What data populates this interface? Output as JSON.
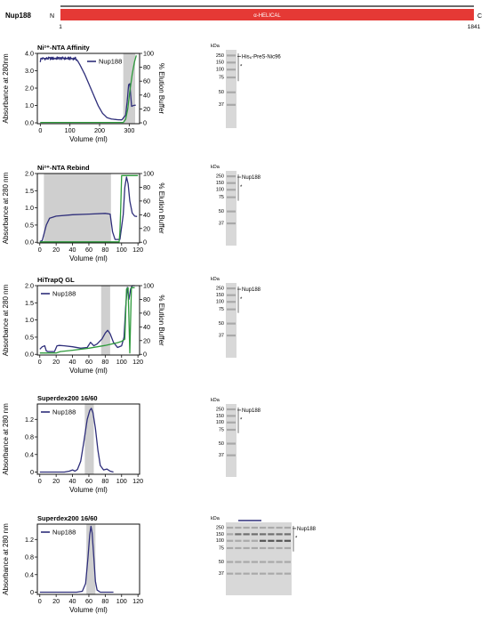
{
  "header": {
    "protein": "Nup188",
    "n_label": "N",
    "c_label": "C",
    "start": "1",
    "end": "1841",
    "domain_label": "α-HELICAL",
    "colors": {
      "domain": "#e53935",
      "line": "#111111"
    }
  },
  "chart_data": [
    {
      "type": "line",
      "title": "Ni²⁺-NTA Affinity",
      "xlabel": "Volume (ml)",
      "ylabel": "Absorbance at 280nm",
      "ylabel2": "% Elution Buffer",
      "xlim": [
        -10,
        335
      ],
      "xticks": [
        0,
        100,
        200,
        300
      ],
      "ylim": [
        -0.05,
        4.0
      ],
      "yticks": [
        0.0,
        1.0,
        2.0,
        3.0,
        4.0
      ],
      "ytick_labels": [
        "0.0",
        "1.0",
        "2.0",
        "3.0",
        "4.0"
      ],
      "y2lim": [
        -1.25,
        100
      ],
      "y2ticks": [
        0,
        20,
        40,
        60,
        80,
        100
      ],
      "shade": [
        [
          280,
          320
        ]
      ],
      "legend": [
        {
          "label": "Nup188",
          "color": "#2e2e7a"
        }
      ],
      "series": [
        {
          "name": "Nup188",
          "color": "#2e2e7a",
          "axis": "left",
          "noise": 0.08,
          "noise_range": [
            5,
            125
          ],
          "points": [
            [
              0,
              3.5
            ],
            [
              2,
              3.72
            ],
            [
              10,
              3.7
            ],
            [
              60,
              3.72
            ],
            [
              120,
              3.7
            ],
            [
              125,
              3.6
            ],
            [
              135,
              3.3
            ],
            [
              150,
              2.8
            ],
            [
              165,
              2.2
            ],
            [
              180,
              1.6
            ],
            [
              195,
              1.0
            ],
            [
              210,
              0.55
            ],
            [
              225,
              0.3
            ],
            [
              240,
              0.22
            ],
            [
              260,
              0.18
            ],
            [
              275,
              0.17
            ],
            [
              288,
              0.45
            ],
            [
              293,
              1.2
            ],
            [
              298,
              2.2
            ],
            [
              302,
              2.25
            ],
            [
              305,
              1.6
            ],
            [
              308,
              0.95
            ],
            [
              315,
              1.0
            ],
            [
              322,
              1.02
            ]
          ]
        },
        {
          "axis": "right",
          "color": "#2e9a3c",
          "points": [
            [
              0,
              0.5
            ],
            [
              280,
              0.5
            ],
            [
              288,
              5
            ],
            [
              295,
              20
            ],
            [
              302,
              45
            ],
            [
              310,
              70
            ],
            [
              318,
              88
            ],
            [
              324,
              97
            ]
          ]
        }
      ]
    },
    {
      "type": "line",
      "title": "Ni²⁺-NTA Rebind",
      "xlabel": "Volume (ml)",
      "ylabel": "Absorbance at 280 nm",
      "ylabel2": "% Elution Buffer",
      "xlim": [
        -3,
        122
      ],
      "xticks": [
        0,
        20,
        40,
        60,
        80,
        100,
        120
      ],
      "ylim": [
        -0.02,
        2.0
      ],
      "yticks": [
        0.0,
        0.5,
        1.0,
        1.5,
        2.0
      ],
      "ytick_labels": [
        "0.0",
        "0.5",
        "1.0",
        "1.5",
        "2.0"
      ],
      "y2lim": [
        -1,
        100
      ],
      "y2ticks": [
        0,
        20,
        40,
        60,
        80,
        100
      ],
      "shade": [
        [
          5,
          87
        ]
      ],
      "legend": [],
      "series": [
        {
          "name": "Nup188",
          "color": "#2e2e7a",
          "axis": "left",
          "points": [
            [
              0,
              0.02
            ],
            [
              3,
              0.05
            ],
            [
              8,
              0.5
            ],
            [
              12,
              0.7
            ],
            [
              20,
              0.76
            ],
            [
              40,
              0.8
            ],
            [
              60,
              0.82
            ],
            [
              80,
              0.84
            ],
            [
              86,
              0.82
            ],
            [
              89,
              0.3
            ],
            [
              92,
              0.08
            ],
            [
              98,
              0.08
            ],
            [
              102,
              0.8
            ],
            [
              104,
              1.6
            ],
            [
              106,
              1.9
            ],
            [
              108,
              1.7
            ],
            [
              110,
              1.2
            ],
            [
              113,
              0.85
            ],
            [
              116,
              0.76
            ],
            [
              119,
              0.75
            ]
          ]
        },
        {
          "axis": "right",
          "color": "#2e9a3c",
          "points": [
            [
              0,
              0.5
            ],
            [
              97,
              0.5
            ],
            [
              98,
              15
            ],
            [
              99,
              50
            ],
            [
              100,
              97
            ],
            [
              120,
              97
            ]
          ]
        }
      ]
    },
    {
      "type": "line",
      "title": "HiTrapQ GL",
      "xlabel": "Volume (ml)",
      "ylabel": "Absorbance at 280 nm",
      "ylabel2": "% Elution Buffer",
      "xlim": [
        -3,
        122
      ],
      "xticks": [
        0,
        20,
        40,
        60,
        80,
        100,
        120
      ],
      "ylim": [
        -0.02,
        2.0
      ],
      "yticks": [
        0.0,
        0.5,
        1.0,
        1.5,
        2.0
      ],
      "ytick_labels": [
        "0.0",
        "0.5",
        "1.0",
        "1.5",
        "2.0"
      ],
      "y2lim": [
        -1,
        100
      ],
      "y2ticks": [
        0,
        20,
        40,
        60,
        80,
        100
      ],
      "shade": [
        [
          75,
          86
        ]
      ],
      "legend": [
        {
          "label": "Nup188",
          "color": "#2e2e7a"
        }
      ],
      "series": [
        {
          "name": "Nup188",
          "color": "#2e2e7a",
          "axis": "left",
          "points": [
            [
              0,
              0.15
            ],
            [
              3,
              0.22
            ],
            [
              6,
              0.25
            ],
            [
              8,
              0.1
            ],
            [
              10,
              0.08
            ],
            [
              18,
              0.08
            ],
            [
              21,
              0.25
            ],
            [
              24,
              0.26
            ],
            [
              30,
              0.25
            ],
            [
              40,
              0.22
            ],
            [
              50,
              0.18
            ],
            [
              58,
              0.2
            ],
            [
              62,
              0.35
            ],
            [
              66,
              0.25
            ],
            [
              70,
              0.3
            ],
            [
              76,
              0.45
            ],
            [
              80,
              0.62
            ],
            [
              83,
              0.7
            ],
            [
              86,
              0.6
            ],
            [
              90,
              0.35
            ],
            [
              95,
              0.2
            ],
            [
              100,
              0.25
            ],
            [
              103,
              0.5
            ],
            [
              105,
              1.4
            ],
            [
              107,
              1.95
            ],
            [
              109,
              1.6
            ],
            [
              111,
              1.9
            ],
            [
              113,
              2.0
            ],
            [
              116,
              2.0
            ]
          ]
        },
        {
          "axis": "right",
          "color": "#2e9a3c",
          "points": [
            [
              0,
              2
            ],
            [
              20,
              2
            ],
            [
              25,
              4
            ],
            [
              40,
              6
            ],
            [
              60,
              9
            ],
            [
              80,
              13
            ],
            [
              95,
              17
            ],
            [
              100,
              19
            ],
            [
              104,
              22
            ],
            [
              106,
              95
            ],
            [
              108,
              97
            ],
            [
              110,
              2
            ],
            [
              112,
              97
            ],
            [
              116,
              97
            ]
          ]
        }
      ]
    },
    {
      "type": "line",
      "title": "Superdex200 16/60",
      "xlabel": "Volume (ml)",
      "ylabel": "Absorbance at 280 nm",
      "xlim": [
        -3,
        122
      ],
      "xticks": [
        0,
        20,
        40,
        60,
        80,
        100,
        120
      ],
      "ylim": [
        -0.05,
        1.55
      ],
      "yticks": [
        0.0,
        0.4,
        0.8,
        1.2
      ],
      "ytick_labels": [
        "0",
        "0.4",
        "0.8",
        "1.2"
      ],
      "shade": [
        [
          55,
          66
        ]
      ],
      "legend": [
        {
          "label": "Nup188",
          "color": "#2e2e7a"
        }
      ],
      "series": [
        {
          "name": "Nup188",
          "color": "#2e2e7a",
          "axis": "left",
          "points": [
            [
              0,
              0
            ],
            [
              30,
              0
            ],
            [
              36,
              0.02
            ],
            [
              40,
              0.05
            ],
            [
              43,
              0.02
            ],
            [
              46,
              0.06
            ],
            [
              50,
              0.25
            ],
            [
              54,
              0.7
            ],
            [
              58,
              1.2
            ],
            [
              61,
              1.4
            ],
            [
              63,
              1.45
            ],
            [
              65,
              1.35
            ],
            [
              68,
              1.0
            ],
            [
              71,
              0.5
            ],
            [
              74,
              0.15
            ],
            [
              78,
              0.05
            ],
            [
              82,
              0.07
            ],
            [
              86,
              0.02
            ],
            [
              90,
              0
            ]
          ]
        }
      ]
    },
    {
      "type": "line",
      "title": "Superdex200 16/60",
      "xlabel": "Volume (ml)",
      "ylabel": "Absorbance at 280 nm",
      "xlim": [
        -3,
        122
      ],
      "xticks": [
        0,
        20,
        40,
        60,
        80,
        100,
        120
      ],
      "ylim": [
        -0.05,
        1.55
      ],
      "yticks": [
        0.0,
        0.4,
        0.8,
        1.2
      ],
      "ytick_labels": [
        "0",
        "0.4",
        "0.8",
        "1.2"
      ],
      "shade": [
        [
          57,
          68
        ]
      ],
      "legend": [
        {
          "label": "Nup188",
          "color": "#2e2e7a"
        }
      ],
      "series": [
        {
          "name": "Nup188",
          "color": "#2e2e7a",
          "axis": "left",
          "points": [
            [
              0,
              0
            ],
            [
              45,
              0
            ],
            [
              52,
              0.02
            ],
            [
              56,
              0.2
            ],
            [
              59,
              0.8
            ],
            [
              61,
              1.3
            ],
            [
              62.5,
              1.5
            ],
            [
              64,
              1.35
            ],
            [
              66,
              0.8
            ],
            [
              68,
              0.25
            ],
            [
              70,
              0.05
            ],
            [
              74,
              0
            ],
            [
              90,
              0
            ]
          ]
        }
      ]
    }
  ],
  "gels": [
    {
      "kda_label": "kDa",
      "markers": [
        "250",
        "150",
        "100",
        "75",
        "50",
        "37"
      ],
      "band_label": "His₆-PreS-Nic96",
      "asterisk": "*"
    },
    {
      "kda_label": "kDa",
      "markers": [
        "250",
        "150",
        "100",
        "75",
        "50",
        "37"
      ],
      "band_label": "Nup188",
      "asterisk": "*"
    },
    {
      "kda_label": "kDa",
      "markers": [
        "250",
        "150",
        "100",
        "75",
        "50",
        "37"
      ],
      "band_label": "Nup188",
      "asterisk": "*"
    },
    {
      "kda_label": "kDa",
      "markers": [
        "250",
        "150",
        "100",
        "75",
        "50",
        "37"
      ],
      "band_label": "Nup188",
      "asterisk": "*"
    },
    {
      "kda_label": "kDa",
      "markers": [
        "250",
        "150",
        "100",
        "75",
        "50",
        "37"
      ],
      "band_label": "Nup188",
      "asterisk": "*"
    }
  ]
}
